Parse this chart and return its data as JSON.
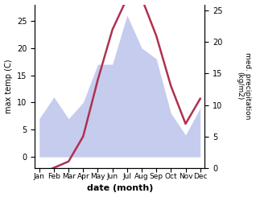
{
  "months": [
    "Jan",
    "Feb",
    "Mar",
    "Apr",
    "May",
    "Jun",
    "Jul",
    "Aug",
    "Sep",
    "Oct",
    "Nov",
    "Dec"
  ],
  "temperature": [
    -1,
    0,
    1,
    5,
    14,
    22,
    27,
    27,
    21,
    13,
    7,
    11
  ],
  "precipitation": [
    7,
    11,
    7,
    10,
    17,
    17,
    26,
    20,
    18,
    8,
    4,
    9
  ],
  "temp_color": "#b03050",
  "precip_color_fill": "#c5ccee",
  "ylabel_left": "max temp (C)",
  "ylabel_right": "med. precipitation\n(kg/m2)",
  "xlabel": "date (month)",
  "ylim_left": [
    -2,
    28
  ],
  "ylim_right": [
    0,
    26
  ],
  "yticks_left": [
    0,
    5,
    10,
    15,
    20,
    25
  ],
  "yticks_right": [
    0,
    5,
    10,
    15,
    20,
    25
  ],
  "background_color": "#ffffff"
}
